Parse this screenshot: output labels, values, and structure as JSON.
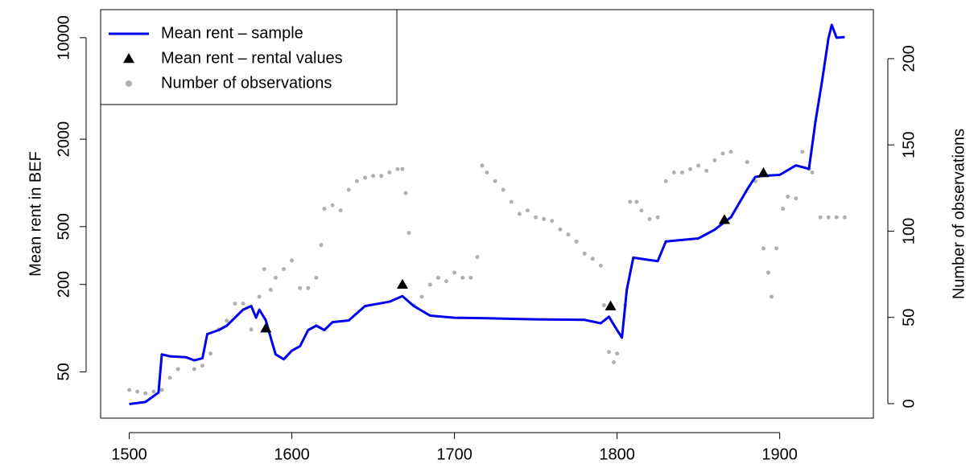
{
  "chart_data": {
    "type": "line",
    "y_label": "Mean rent in BEF",
    "y2_label": "Number of observations",
    "xlim": [
      1482.4,
      1957.6
    ],
    "xticks": [
      1500,
      1600,
      1700,
      1800,
      1900
    ],
    "ylim": [
      24,
      15600
    ],
    "yticks": [
      50,
      200,
      500,
      2000,
      10000
    ],
    "log_y": true,
    "y2lim": [
      -8.4,
      228.4
    ],
    "y2ticks": [
      0,
      50,
      100,
      150,
      200
    ],
    "legend": "top-left",
    "series": [
      {
        "name": "Mean rent – sample",
        "color": "#0000ee",
        "mark": "line",
        "x": [
          1500,
          1510,
          1518,
          1520,
          1525,
          1535,
          1540,
          1545,
          1548,
          1555,
          1560,
          1565,
          1570,
          1575,
          1578,
          1580,
          1584,
          1587,
          1590,
          1595,
          1600,
          1605,
          1610,
          1615,
          1620,
          1625,
          1635,
          1645,
          1660,
          1668,
          1675,
          1685,
          1700,
          1720,
          1750,
          1780,
          1790,
          1795,
          1800,
          1803,
          1806,
          1810,
          1815,
          1825,
          1830,
          1840,
          1850,
          1860,
          1870,
          1880,
          1885,
          1890,
          1900,
          1910,
          1918,
          1922,
          1926,
          1930,
          1932,
          1935,
          1940
        ],
        "values": [
          30,
          31,
          36,
          66,
          64,
          63,
          60,
          62,
          91,
          97,
          104,
          118,
          134,
          142,
          118,
          134,
          113,
          86,
          66,
          61,
          70,
          75,
          97,
          104,
          97,
          110,
          113,
          142,
          152,
          166,
          142,
          122,
          118,
          117,
          115,
          114,
          108,
          120,
          97,
          86,
          184,
          306,
          300,
          289,
          395,
          405,
          415,
          476,
          580,
          900,
          1100,
          1120,
          1135,
          1320,
          1250,
          2650,
          4990,
          9900,
          12250,
          10000,
          10100
        ]
      },
      {
        "name": "Mean rent – rental values",
        "color": "#000000",
        "mark": "triangle",
        "x": [
          1584,
          1668,
          1796,
          1866,
          1890
        ],
        "values": [
          100,
          200,
          142,
          558,
          1172
        ]
      },
      {
        "name": "Number of observations",
        "color": "#b0b0b0",
        "mark": "dot",
        "axis": "y2",
        "x": [
          1500,
          1505,
          1510,
          1515,
          1520,
          1525,
          1530,
          1540,
          1545,
          1550,
          1555,
          1560,
          1565,
          1570,
          1575,
          1580,
          1583,
          1587,
          1590,
          1595,
          1600,
          1605,
          1610,
          1615,
          1618,
          1620,
          1625,
          1630,
          1635,
          1640,
          1645,
          1650,
          1655,
          1660,
          1665,
          1668,
          1670,
          1672,
          1675,
          1680,
          1685,
          1690,
          1695,
          1700,
          1705,
          1710,
          1714,
          1717,
          1720,
          1725,
          1730,
          1735,
          1740,
          1745,
          1750,
          1755,
          1760,
          1765,
          1770,
          1775,
          1780,
          1785,
          1790,
          1792,
          1795,
          1798,
          1800,
          1805,
          1808,
          1812,
          1815,
          1820,
          1825,
          1830,
          1835,
          1840,
          1845,
          1850,
          1855,
          1860,
          1865,
          1870,
          1880,
          1885,
          1890,
          1893,
          1895,
          1898,
          1902,
          1905,
          1910,
          1914,
          1918,
          1920,
          1925,
          1930,
          1935,
          1940
        ],
        "values": [
          8,
          7,
          6,
          7,
          8,
          15,
          20,
          20,
          22,
          29,
          43,
          48,
          58,
          58,
          43,
          62,
          78,
          66,
          73,
          78,
          83,
          67,
          67,
          73,
          92,
          113,
          115,
          112,
          124,
          129,
          131,
          132,
          132,
          134,
          136,
          136,
          122,
          99,
          57,
          62,
          69,
          73,
          71,
          76,
          73,
          73,
          85,
          138,
          134,
          129,
          124,
          117,
          110,
          112,
          108,
          107,
          106,
          101,
          98,
          94,
          87,
          84,
          80,
          57,
          30,
          24,
          29,
          57,
          117,
          117,
          112,
          107,
          108,
          129,
          134,
          134,
          136,
          138,
          135,
          141,
          145,
          146,
          140,
          129,
          90,
          76,
          62,
          90,
          113,
          120,
          119,
          146,
          136,
          134,
          108,
          108,
          108,
          108
        ]
      }
    ]
  }
}
